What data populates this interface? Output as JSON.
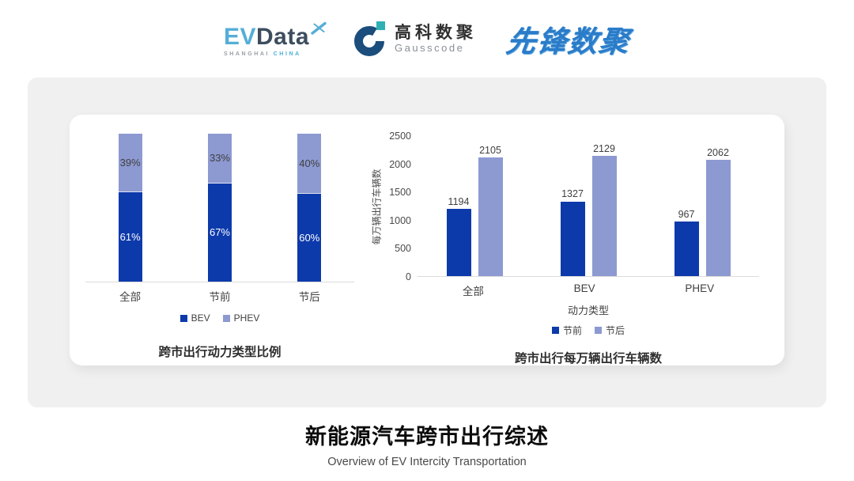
{
  "header": {
    "evdata": {
      "ev": "EV",
      "data": "Data",
      "sub_left": "SHANGHAI",
      "sub_right": "CHINA"
    },
    "gausscode": {
      "cn": "高科数聚",
      "en": "Gausscode"
    },
    "pioneer": {
      "text": "先锋数聚"
    }
  },
  "colors": {
    "series_dark_blue": "#0d3aab",
    "series_light_blue": "#8d99d1",
    "axis_line": "#dcdcdc",
    "chart_text": "#404040",
    "evdata_blue": "#55aed7",
    "evdata_dark": "#3d4d5f",
    "gausscode_navy": "#1b4d7d",
    "gausscode_teal": "#2fb0b4",
    "pioneer_blue": "#2a7cc9",
    "card_gray": "#f0f0f1"
  },
  "chart_data": [
    {
      "type": "bar",
      "subtype": "stacked-100-percent",
      "title": "跨市出行动力类型比例",
      "categories": [
        "全部",
        "节前",
        "节后"
      ],
      "series": [
        {
          "name": "BEV",
          "values": [
            61,
            67,
            60
          ],
          "labels": [
            "61%",
            "67%",
            "60%"
          ],
          "color": "#0d3aab",
          "label_color": "#ffffff"
        },
        {
          "name": "PHEV",
          "values": [
            39,
            33,
            40
          ],
          "labels": [
            "39%",
            "33%",
            "40%"
          ],
          "color": "#8d99d1",
          "label_color": "#404040"
        }
      ],
      "ylim": [
        0,
        100
      ],
      "grid": false,
      "legend_position": "bottom"
    },
    {
      "type": "bar",
      "subtype": "grouped",
      "title": "跨市出行每万辆出行车辆数",
      "categories": [
        "全部",
        "BEV",
        "PHEV"
      ],
      "series": [
        {
          "name": "节前",
          "values": [
            1194,
            1327,
            967
          ],
          "color": "#0d3aab"
        },
        {
          "name": "节后",
          "values": [
            2105,
            2129,
            2062
          ],
          "color": "#8d99d1"
        }
      ],
      "xlabel": "动力类型",
      "ylabel": "每万辆出行车辆数",
      "ylim": [
        0,
        2500
      ],
      "yticks": [
        0,
        500,
        1000,
        1500,
        2000,
        2500
      ],
      "grid": false,
      "legend_position": "bottom"
    }
  ],
  "footer": {
    "title": "新能源汽车跨市出行综述",
    "subtitle": "Overview of EV Intercity Transportation"
  }
}
